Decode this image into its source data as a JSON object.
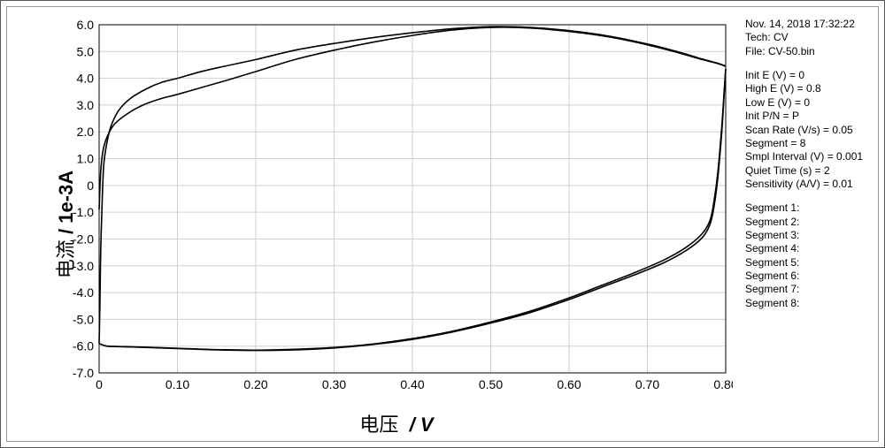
{
  "timestamp": "Nov. 14, 2018    17:32:22",
  "tech_label": "Tech: CV",
  "file_label": "File: CV-50.bin",
  "params": [
    "Init E (V) = 0",
    "High E (V) = 0.8",
    "Low E (V) = 0",
    "Init P/N = P",
    "Scan Rate (V/s) = 0.05",
    "Segment = 8",
    "Smpl Interval (V) = 0.001",
    "Quiet Time (s) = 2",
    "Sensitivity (A/V) = 0.01"
  ],
  "segments": [
    "Segment 1:",
    "Segment 2:",
    "Segment 3:",
    "Segment 4:",
    "Segment 5:",
    "Segment 6:",
    "Segment 7:",
    "Segment 8:"
  ],
  "ylabel_text": "电流",
  "ylabel_unit": "/ 1e-3A",
  "xlabel_text": "电压",
  "xlabel_unit": "/ V",
  "chart": {
    "type": "line",
    "xlim": [
      0,
      0.8
    ],
    "ylim": [
      -7.0,
      6.0
    ],
    "xticks": [
      0,
      0.1,
      0.2,
      0.3,
      0.4,
      0.5,
      0.6,
      0.7,
      0.8
    ],
    "yticks": [
      6.0,
      5.0,
      4.0,
      3.0,
      2.0,
      1.0,
      0,
      -1.0,
      -2.0,
      -3.0,
      -4.0,
      -5.0,
      -6.0,
      -7.0
    ],
    "grid_color": "#cfcfcf",
    "axis_color": "#000000",
    "plot_bg": "#ffffff",
    "line_color": "#000000",
    "line_width": 1.6,
    "tick_fontsize": 14,
    "label_fontsize": 22,
    "loops": [
      {
        "forward": [
          [
            0.0,
            -0.9
          ],
          [
            0.002,
            0.5
          ],
          [
            0.005,
            1.3
          ],
          [
            0.01,
            1.8
          ],
          [
            0.02,
            2.3
          ],
          [
            0.04,
            2.75
          ],
          [
            0.06,
            3.05
          ],
          [
            0.08,
            3.25
          ],
          [
            0.1,
            3.4
          ],
          [
            0.13,
            3.65
          ],
          [
            0.16,
            3.9
          ],
          [
            0.2,
            4.25
          ],
          [
            0.25,
            4.7
          ],
          [
            0.3,
            5.05
          ],
          [
            0.35,
            5.35
          ],
          [
            0.4,
            5.6
          ],
          [
            0.45,
            5.8
          ],
          [
            0.5,
            5.9
          ],
          [
            0.55,
            5.88
          ],
          [
            0.6,
            5.75
          ],
          [
            0.65,
            5.55
          ],
          [
            0.7,
            5.25
          ],
          [
            0.74,
            4.95
          ],
          [
            0.77,
            4.7
          ],
          [
            0.79,
            4.55
          ],
          [
            0.8,
            4.45
          ]
        ],
        "reverse": [
          [
            0.8,
            4.35
          ],
          [
            0.798,
            3.5
          ],
          [
            0.795,
            2.2
          ],
          [
            0.79,
            0.5
          ],
          [
            0.785,
            -0.6
          ],
          [
            0.78,
            -1.3
          ],
          [
            0.77,
            -1.8
          ],
          [
            0.75,
            -2.3
          ],
          [
            0.72,
            -2.8
          ],
          [
            0.68,
            -3.3
          ],
          [
            0.64,
            -3.75
          ],
          [
            0.6,
            -4.2
          ],
          [
            0.55,
            -4.7
          ],
          [
            0.5,
            -5.1
          ],
          [
            0.45,
            -5.45
          ],
          [
            0.4,
            -5.72
          ],
          [
            0.35,
            -5.92
          ],
          [
            0.3,
            -6.05
          ],
          [
            0.25,
            -6.12
          ],
          [
            0.2,
            -6.15
          ],
          [
            0.15,
            -6.13
          ],
          [
            0.1,
            -6.08
          ],
          [
            0.06,
            -6.04
          ],
          [
            0.03,
            -6.02
          ],
          [
            0.01,
            -6.0
          ],
          [
            0.0,
            -5.9
          ]
        ]
      },
      {
        "forward": [
          [
            0.0,
            -5.9
          ],
          [
            0.001,
            -4.5
          ],
          [
            0.002,
            -2.5
          ],
          [
            0.004,
            -0.5
          ],
          [
            0.006,
            0.8
          ],
          [
            0.01,
            1.6
          ],
          [
            0.015,
            2.2
          ],
          [
            0.025,
            2.8
          ],
          [
            0.04,
            3.25
          ],
          [
            0.06,
            3.6
          ],
          [
            0.08,
            3.85
          ],
          [
            0.1,
            4.0
          ],
          [
            0.13,
            4.25
          ],
          [
            0.16,
            4.45
          ],
          [
            0.2,
            4.7
          ],
          [
            0.25,
            5.05
          ],
          [
            0.3,
            5.3
          ],
          [
            0.35,
            5.52
          ],
          [
            0.4,
            5.7
          ],
          [
            0.45,
            5.85
          ],
          [
            0.5,
            5.93
          ],
          [
            0.55,
            5.9
          ],
          [
            0.6,
            5.78
          ],
          [
            0.65,
            5.58
          ],
          [
            0.7,
            5.28
          ],
          [
            0.74,
            4.98
          ],
          [
            0.77,
            4.72
          ],
          [
            0.79,
            4.56
          ],
          [
            0.8,
            4.45
          ]
        ],
        "reverse": [
          [
            0.8,
            4.35
          ],
          [
            0.798,
            3.4
          ],
          [
            0.795,
            2.0
          ],
          [
            0.79,
            0.3
          ],
          [
            0.785,
            -0.8
          ],
          [
            0.78,
            -1.45
          ],
          [
            0.77,
            -1.95
          ],
          [
            0.75,
            -2.42
          ],
          [
            0.72,
            -2.9
          ],
          [
            0.68,
            -3.38
          ],
          [
            0.64,
            -3.82
          ],
          [
            0.6,
            -4.26
          ],
          [
            0.55,
            -4.75
          ],
          [
            0.5,
            -5.14
          ],
          [
            0.45,
            -5.48
          ],
          [
            0.4,
            -5.75
          ],
          [
            0.35,
            -5.94
          ],
          [
            0.3,
            -6.07
          ],
          [
            0.25,
            -6.14
          ],
          [
            0.2,
            -6.16
          ],
          [
            0.15,
            -6.14
          ],
          [
            0.1,
            -6.09
          ],
          [
            0.06,
            -6.05
          ],
          [
            0.03,
            -6.02
          ],
          [
            0.01,
            -6.0
          ],
          [
            0.0,
            -5.9
          ]
        ]
      }
    ]
  }
}
